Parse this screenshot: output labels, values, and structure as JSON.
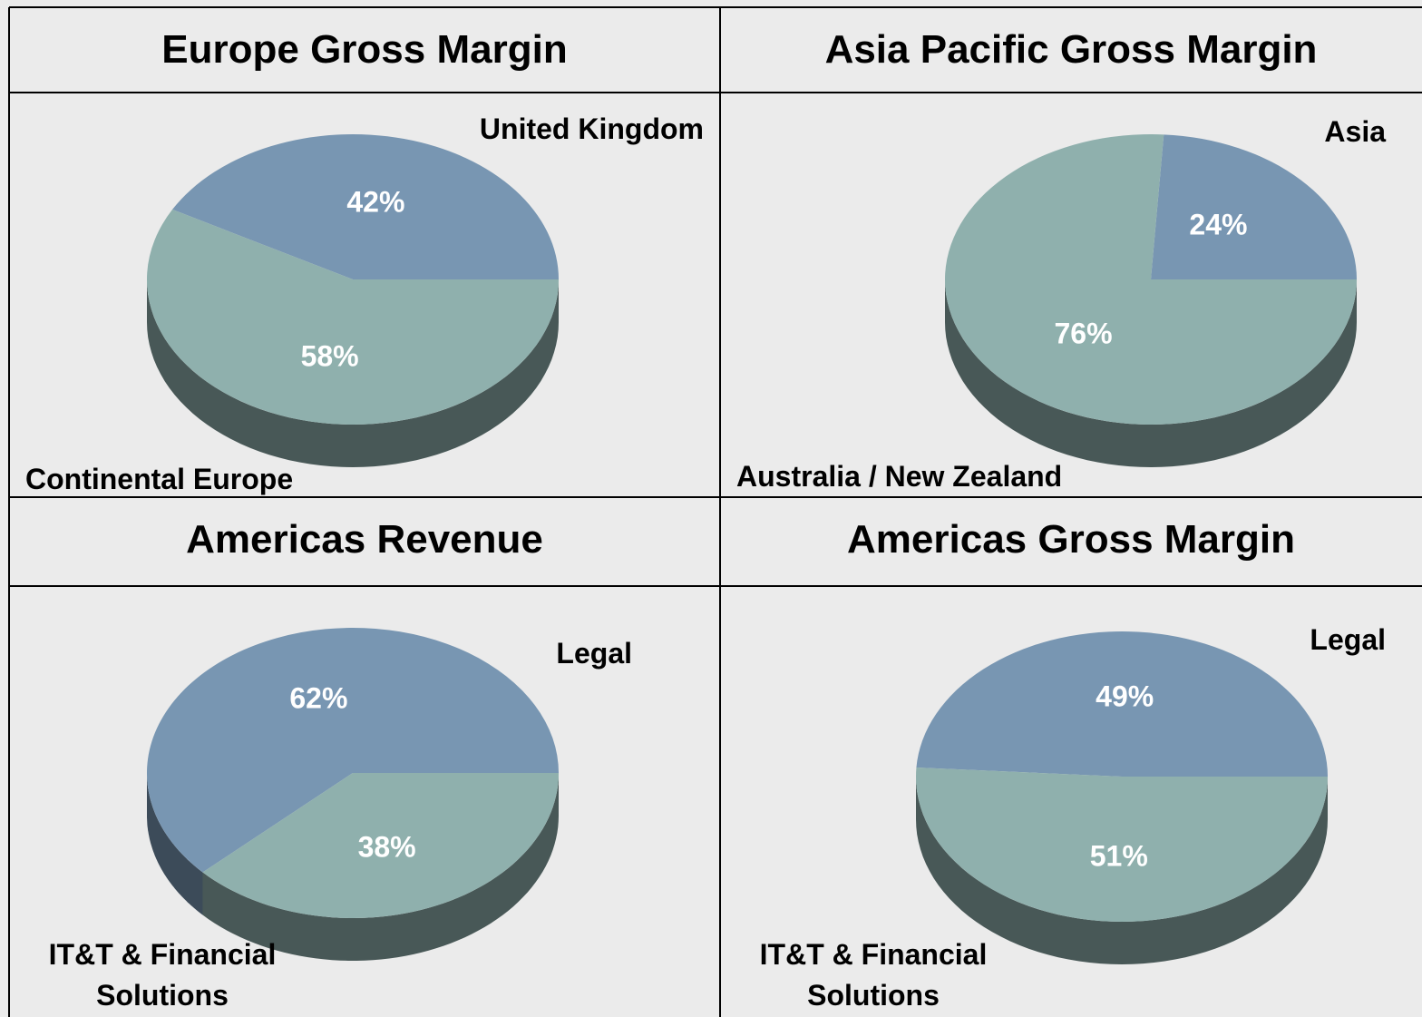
{
  "chart_data": [
    {
      "type": "pie",
      "title": "Europe Gross Margin",
      "categories": [
        "United Kingdom",
        "Continental Europe"
      ],
      "values": [
        42,
        58
      ],
      "value_labels": [
        "42%",
        "58%"
      ],
      "colors": [
        "#7896b2",
        "#8fb0ad"
      ]
    },
    {
      "type": "pie",
      "title": "Asia Pacific Gross Margin",
      "categories": [
        "Asia",
        "Australia / New Zealand"
      ],
      "values": [
        24,
        76
      ],
      "value_labels": [
        "24%",
        "76%"
      ],
      "colors": [
        "#7896b2",
        "#8fb0ad"
      ]
    },
    {
      "type": "pie",
      "title": "Americas Revenue",
      "categories": [
        "Legal",
        "IT&T & Financial Solutions"
      ],
      "values": [
        62,
        38
      ],
      "value_labels": [
        "62%",
        "38%"
      ],
      "colors": [
        "#7896b2",
        "#8fb0ad"
      ]
    },
    {
      "type": "pie",
      "title": "Americas Gross Margin",
      "categories": [
        "Legal",
        "IT&T & Financial Solutions"
      ],
      "values": [
        49,
        51
      ],
      "value_labels": [
        "49%",
        "51%"
      ],
      "colors": [
        "#7896b2",
        "#8fb0ad"
      ]
    }
  ]
}
